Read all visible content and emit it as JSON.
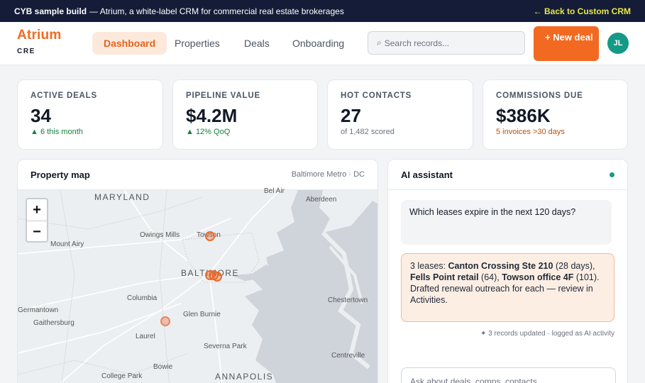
{
  "banner": {
    "title": "CYB sample build",
    "description": "— Atrium, a white-label CRM for commercial real estate brokerages",
    "back_link": "← Back to Custom CRM"
  },
  "brand": {
    "name": "Atrium",
    "tagline": "CRE"
  },
  "nav": {
    "tabs": [
      {
        "label": "Dashboard",
        "active": true
      },
      {
        "label": "Properties",
        "active": false
      },
      {
        "label": "Deals",
        "active": false
      },
      {
        "label": "Onboarding",
        "active": false
      }
    ],
    "search_placeholder": "Search records...",
    "search_icon": "search-icon",
    "new_button": "+ New deal",
    "avatar_initials": "JL"
  },
  "kpis": [
    {
      "label": "ACTIVE DEALS",
      "value": "34",
      "sub": "▲ 6 this month",
      "tone": "green"
    },
    {
      "label": "PIPELINE VALUE",
      "value": "$4.2M",
      "sub": "▲ 12% QoQ",
      "tone": "green"
    },
    {
      "label": "HOT CONTACTS",
      "value": "27",
      "sub": "of 1,482 scored",
      "tone": "gray"
    },
    {
      "label": "COMMISSIONS DUE",
      "value": "$386K",
      "sub": "5 invoices >30 days",
      "tone": "amber"
    }
  ],
  "map_panel": {
    "title": "Property map",
    "region": "Baltimore Metro · DC",
    "zoom_in": "+",
    "zoom_out": "−",
    "places": {
      "maryland": "MARYLAND",
      "bel_air": "Bel Air",
      "aberdeen": "Aberdeen",
      "owings_mills": "Owings Mills",
      "towson": "Towson",
      "mount_airy": "Mount Airy",
      "baltimore": "BALTIMORE",
      "columbia": "Columbia",
      "germantown": "Germantown",
      "glen_burnie": "Glen Burnie",
      "chestertown": "Chestertown",
      "gaithersburg": "Gaithersburg",
      "laurel": "Laurel",
      "severna_park": "Severna Park",
      "centreville": "Centreville",
      "bowie": "Bowie",
      "college_park": "College Park",
      "annapolis": "ANNAPOLIS"
    },
    "pins": 5
  },
  "ai_panel": {
    "title": "AI assistant",
    "question": "Which leases expire in the next 120 days?",
    "answer_intro": "3 leases: ",
    "answer_item1": "Canton Crossing Ste 210",
    "answer_item1_note": " (28 days), ",
    "answer_item2": "Fells Point retail",
    "answer_item2_note": " (64), ",
    "answer_item3": "Towson office 4F",
    "answer_item3_note": " (101). Drafted renewal outreach for each — review in Activities.",
    "note": "✦ 3 records updated · logged as AI activity",
    "ask_placeholder": "Ask about deals, comps, contacts..."
  }
}
